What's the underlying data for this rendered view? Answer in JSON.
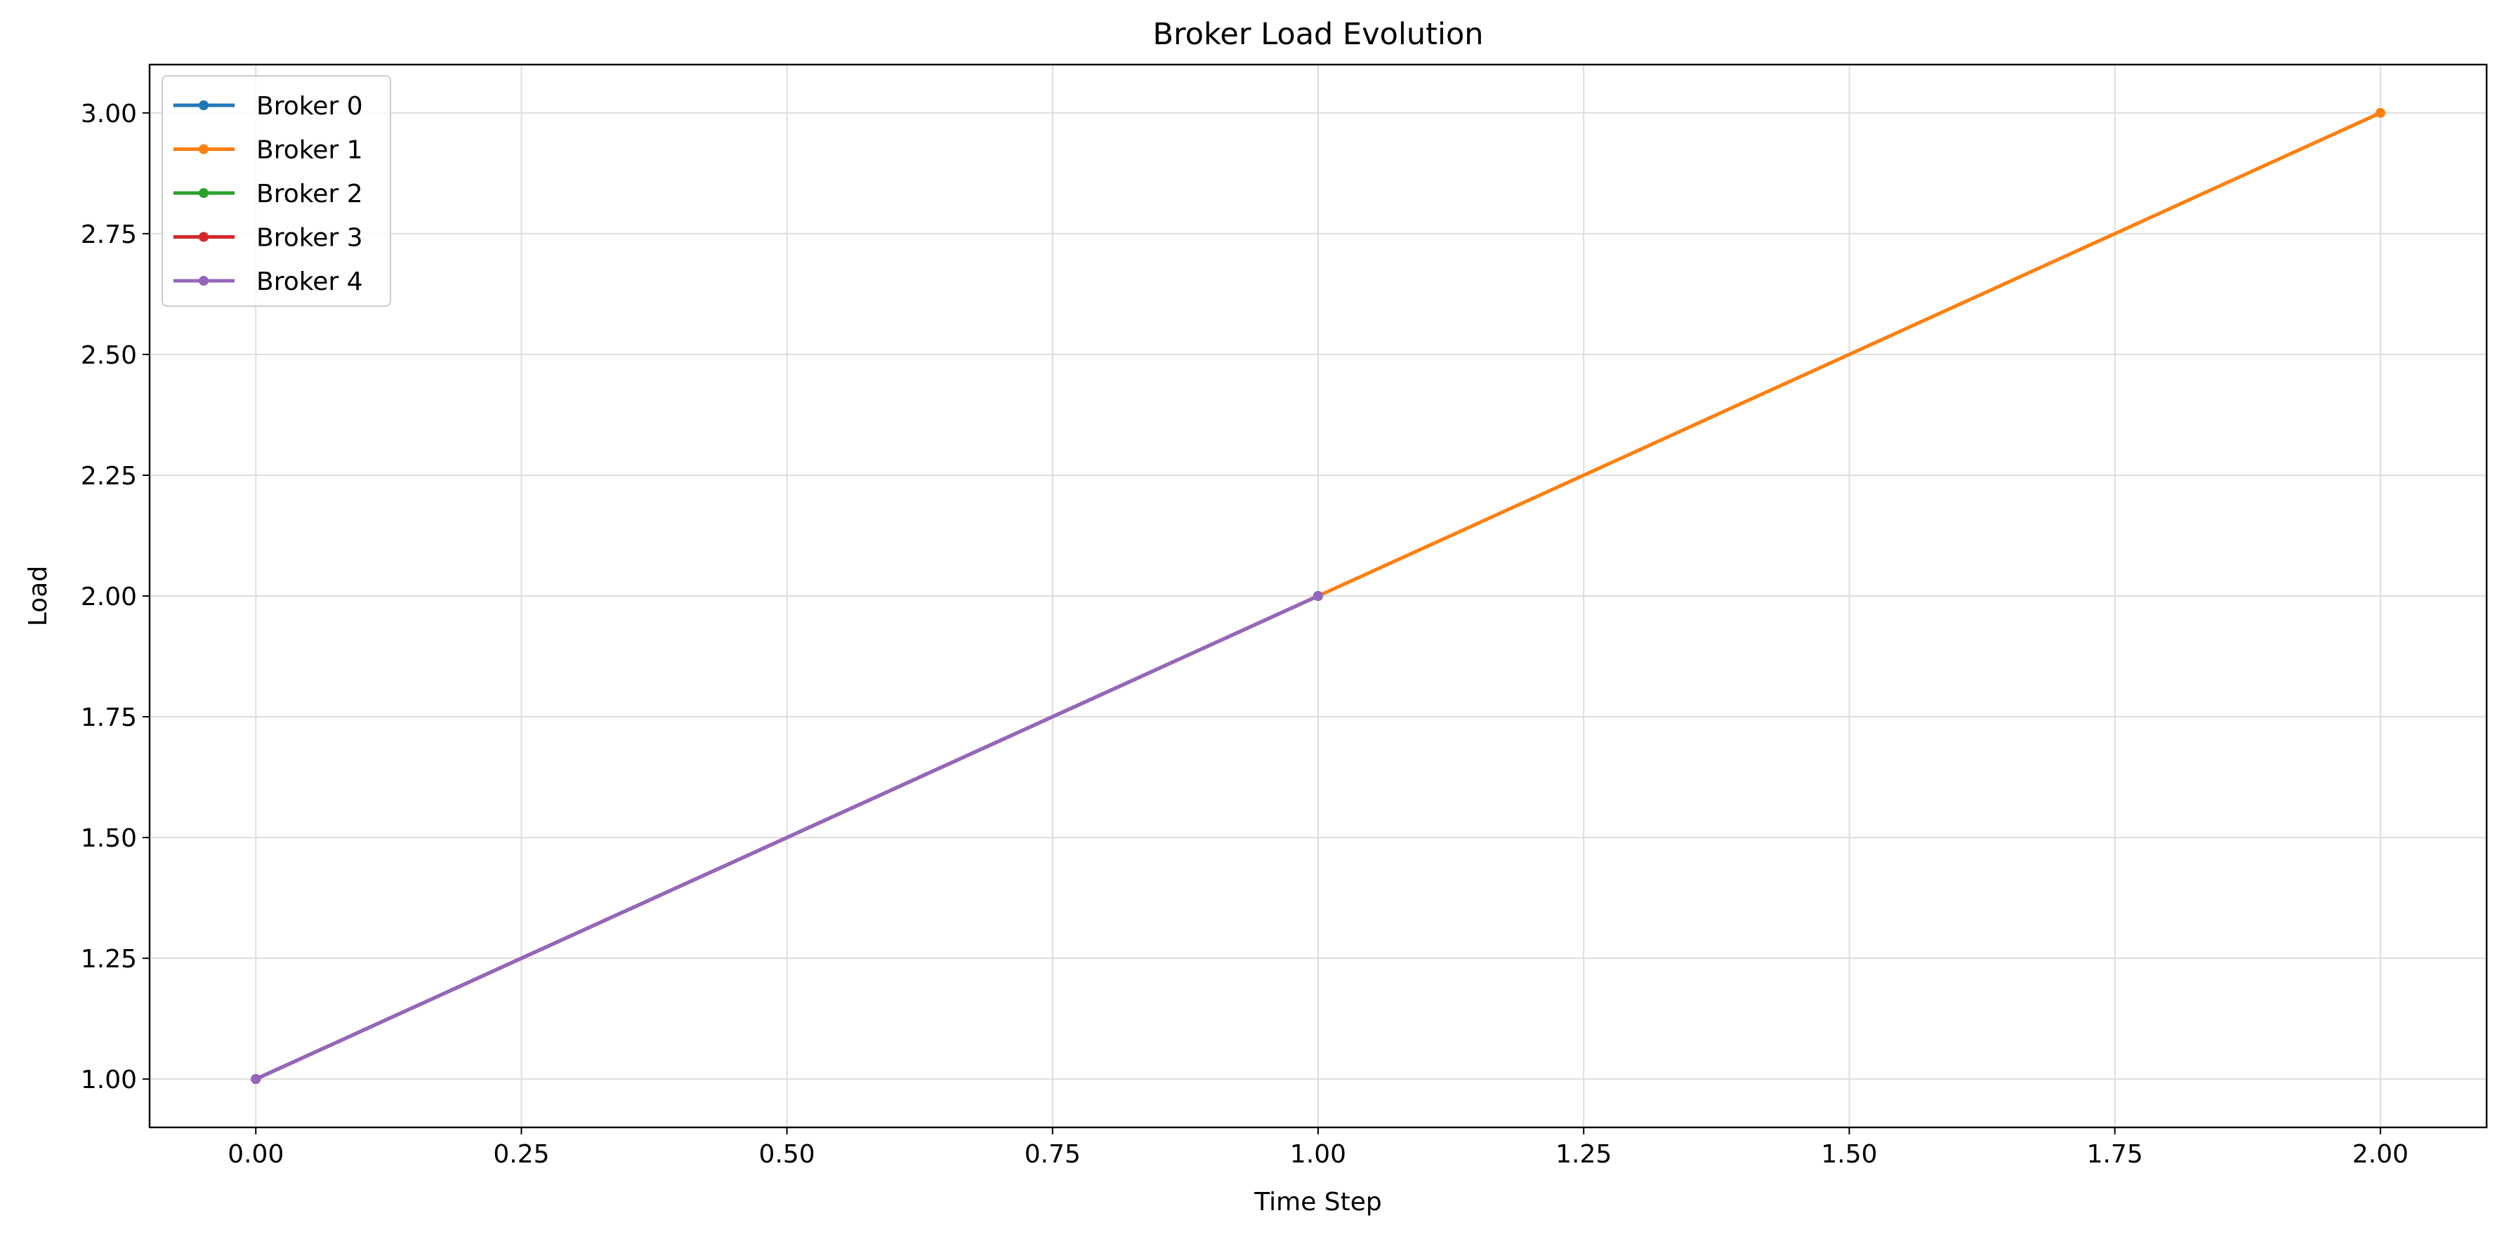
{
  "chart_data": {
    "type": "line",
    "title": "Broker Load Evolution",
    "xlabel": "Time Step",
    "ylabel": "Load",
    "xlim": [
      -0.1,
      2.1
    ],
    "ylim": [
      0.9,
      3.1
    ],
    "x_ticks": [
      "0.00",
      "0.25",
      "0.50",
      "0.75",
      "1.00",
      "1.25",
      "1.50",
      "1.75",
      "2.00"
    ],
    "y_ticks": [
      "1.00",
      "1.25",
      "1.50",
      "1.75",
      "2.00",
      "2.25",
      "2.50",
      "2.75",
      "3.00"
    ],
    "grid": true,
    "legend_position": "top-left",
    "series": [
      {
        "name": "Broker 0",
        "color": "#1f77b4",
        "x": [
          0,
          1
        ],
        "y": [
          1,
          2
        ]
      },
      {
        "name": "Broker 1",
        "color": "#ff7f0e",
        "x": [
          0,
          1,
          2
        ],
        "y": [
          1,
          2,
          3
        ]
      },
      {
        "name": "Broker 2",
        "color": "#2ca02c",
        "x": [
          0,
          1
        ],
        "y": [
          1,
          2
        ]
      },
      {
        "name": "Broker 3",
        "color": "#d62728",
        "x": [
          0,
          1
        ],
        "y": [
          1,
          2
        ]
      },
      {
        "name": "Broker 4",
        "color": "#9467bd",
        "x": [
          0,
          1
        ],
        "y": [
          1,
          2
        ]
      }
    ]
  }
}
